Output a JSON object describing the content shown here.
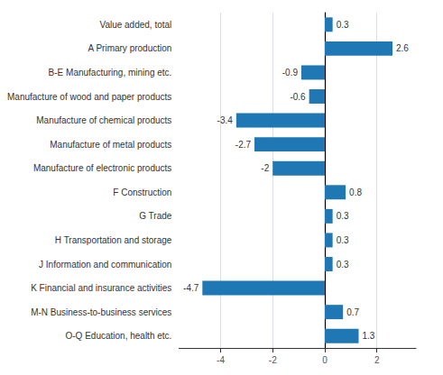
{
  "chart_data": {
    "type": "bar",
    "orientation": "horizontal",
    "categories": [
      "Value added, total",
      "A Primary production",
      "B-E Manufacturing, mining etc.",
      "Manufacture of wood and paper products",
      "Manufacture of chemical products",
      "Manufacture of metal products",
      "Manufacture of electronic products",
      "F Construction",
      "G Trade",
      "H Transportation and storage",
      "J Information and communication",
      "K Financial and insurance activities",
      "M-N Business-to-business services",
      "O-Q Education, health etc."
    ],
    "values": [
      0.3,
      2.6,
      -0.9,
      -0.6,
      -3.4,
      -2.7,
      -2.0,
      0.8,
      0.3,
      0.3,
      0.3,
      -4.7,
      0.7,
      1.3
    ],
    "color": "#1f77b4",
    "xlim": [
      -5.6,
      3.5
    ],
    "xticks": [
      -4,
      -2,
      0,
      2
    ],
    "grid": true,
    "data_labels": true
  }
}
